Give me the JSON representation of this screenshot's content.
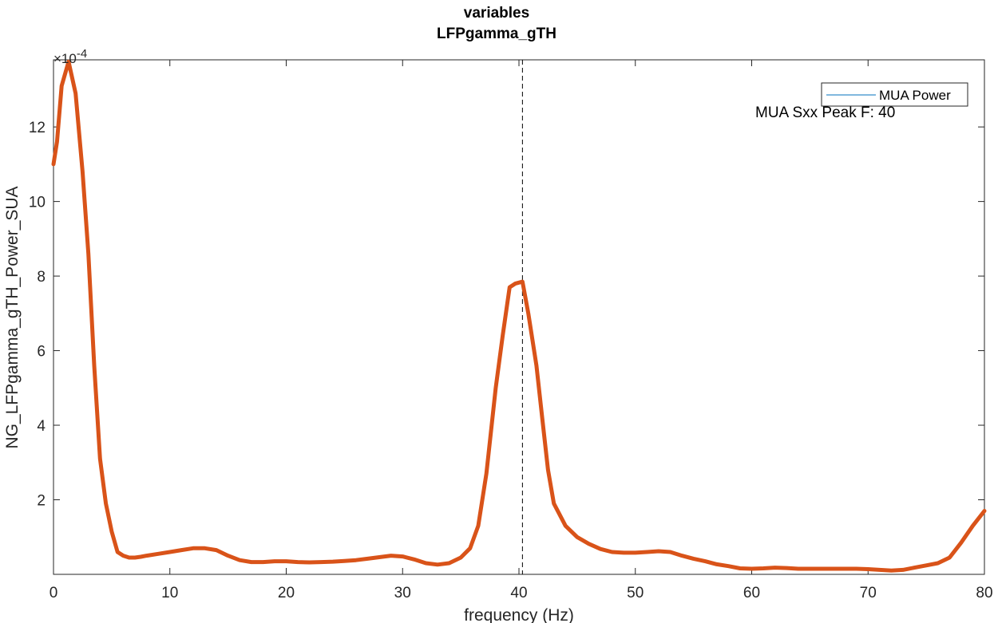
{
  "chart_data": {
    "type": "line",
    "title": "variables",
    "subtitle": "LFPgamma_gTH",
    "xlabel": "frequency (Hz)",
    "ylabel": "NG_LFPgamma_gTH_Power_SUA",
    "y_exponent_label": "×10",
    "y_exponent_power": "-4",
    "xlim": [
      0,
      80
    ],
    "ylim": [
      0,
      13.8
    ],
    "y_scale_factor": 0.0001,
    "xticks": [
      0,
      10,
      20,
      30,
      40,
      50,
      60,
      70,
      80
    ],
    "xtick_labels": [
      "0",
      "10",
      "20",
      "30",
      "40",
      "50",
      "60",
      "70",
      "80"
    ],
    "yticks": [
      2,
      4,
      6,
      8,
      10,
      12
    ],
    "ytick_labels": [
      "2",
      "4",
      "6",
      "8",
      "10",
      "12"
    ],
    "grid": false,
    "legend": {
      "placement": "top-right",
      "entries": [
        "MUA Power"
      ]
    },
    "annotation": {
      "text": "MUA Sxx Peak F: 40",
      "x": 60.2,
      "y": 12.5
    },
    "peak_line": {
      "x": 40.3,
      "style": "dashed",
      "color": "#000000"
    },
    "colors": {
      "series": "#D95319",
      "legend_line": "#0072BD",
      "axis": "#262626"
    },
    "series": [
      {
        "name": "MUA Power",
        "x": [
          0,
          0.3,
          0.7,
          1.3,
          1.9,
          2.5,
          3.0,
          3.5,
          4.0,
          4.5,
          5.0,
          5.5,
          6.0,
          6.5,
          7.0,
          7.5,
          8.0,
          9.0,
          10.0,
          11.0,
          12.0,
          13.0,
          14.0,
          15.0,
          16.0,
          17.0,
          18.0,
          19.0,
          20.0,
          21.0,
          22.0,
          23.0,
          24.0,
          25.0,
          26.0,
          27.0,
          28.0,
          29.0,
          30.0,
          31.0,
          32.0,
          33.0,
          34.0,
          35.0,
          35.8,
          36.5,
          37.2,
          38.0,
          38.6,
          39.2,
          39.7,
          40.3,
          40.8,
          41.5,
          42.0,
          42.5,
          43.0,
          43.5,
          44.0,
          45.0,
          46.0,
          47.0,
          48.0,
          49.0,
          50.0,
          51.0,
          52.0,
          53.0,
          54.0,
          55.0,
          56.0,
          57.0,
          58.0,
          59.0,
          60.0,
          61.0,
          62.0,
          63.0,
          64.0,
          65.0,
          66.0,
          67.0,
          68.0,
          69.0,
          70.0,
          71.0,
          72.0,
          73.0,
          74.0,
          75.0,
          76.0,
          77.0,
          78.0,
          79.0,
          80.0
        ],
        "values": [
          11.0,
          11.6,
          13.1,
          13.75,
          12.9,
          10.8,
          8.6,
          5.6,
          3.1,
          1.9,
          1.15,
          0.6,
          0.5,
          0.45,
          0.45,
          0.47,
          0.5,
          0.55,
          0.6,
          0.65,
          0.7,
          0.7,
          0.65,
          0.5,
          0.38,
          0.33,
          0.33,
          0.35,
          0.35,
          0.33,
          0.32,
          0.33,
          0.34,
          0.36,
          0.38,
          0.42,
          0.46,
          0.5,
          0.48,
          0.4,
          0.3,
          0.26,
          0.3,
          0.45,
          0.7,
          1.3,
          2.7,
          5.0,
          6.4,
          7.7,
          7.8,
          7.85,
          7.0,
          5.6,
          4.2,
          2.8,
          1.9,
          1.6,
          1.3,
          1.0,
          0.82,
          0.68,
          0.6,
          0.58,
          0.58,
          0.6,
          0.62,
          0.6,
          0.5,
          0.42,
          0.35,
          0.27,
          0.22,
          0.16,
          0.15,
          0.16,
          0.18,
          0.17,
          0.15,
          0.15,
          0.15,
          0.15,
          0.15,
          0.15,
          0.14,
          0.12,
          0.1,
          0.12,
          0.18,
          0.24,
          0.3,
          0.45,
          0.85,
          1.3,
          1.7
        ]
      }
    ]
  }
}
